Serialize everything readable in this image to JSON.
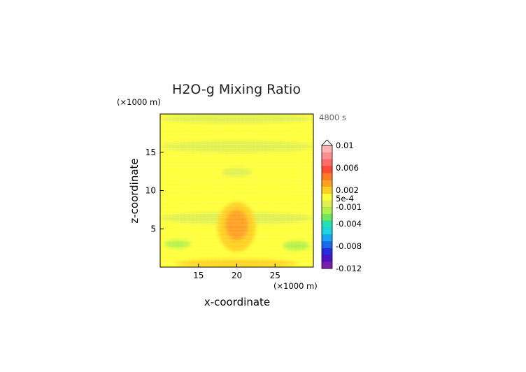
{
  "chart_data": {
    "type": "heatmap",
    "title": "H2O-g Mixing Ratio",
    "time_label": "4800 s",
    "xlabel": "x-coordinate",
    "ylabel": "z-coordinate",
    "x_unit": "(×1000 m)",
    "y_unit": "(×1000 m)",
    "xlim": [
      10,
      30
    ],
    "ylim": [
      0,
      20
    ],
    "x_ticks": [
      "15",
      "20",
      "25"
    ],
    "x_tick_values": [
      15,
      20,
      25
    ],
    "y_ticks": [
      "5",
      "10",
      "15"
    ],
    "y_tick_values": [
      5,
      10,
      15
    ],
    "colorbar": {
      "labels": [
        "0.01",
        "0.006",
        "0.002",
        "5e-4",
        "-0.001",
        "-0.004",
        "-0.008",
        "-0.012"
      ],
      "label_values": [
        0.01,
        0.006,
        0.002,
        0.0005,
        -0.001,
        -0.004,
        -0.008,
        -0.012
      ],
      "min": -0.012,
      "max": 0.01,
      "extend": "max"
    },
    "background_value": 0.0009,
    "features": [
      {
        "name": "upper-green-band",
        "value": -0.0002,
        "x": [
          10,
          30
        ],
        "y": [
          18.8,
          20
        ]
      },
      {
        "name": "upper-yellow-lens",
        "value": 0.0009,
        "x": [
          13,
          27
        ],
        "y": [
          17.4,
          18.6
        ]
      },
      {
        "name": "green-band-16km",
        "value": -0.0002,
        "x": [
          10,
          30
        ],
        "y": [
          15,
          16.5
        ]
      },
      {
        "name": "green-blob-13km",
        "value": -0.0002,
        "x": [
          18,
          22
        ],
        "y": [
          11.8,
          13
        ]
      },
      {
        "name": "green-band-7km",
        "value": -0.0002,
        "x": [
          10,
          30
        ],
        "y": [
          5.6,
          7.2
        ]
      },
      {
        "name": "orange-plume",
        "value": 0.002,
        "x": [
          17.5,
          22.5
        ],
        "y": [
          2,
          8.5
        ]
      },
      {
        "name": "red-core",
        "value": 0.003,
        "x": [
          18.5,
          21.5
        ],
        "y": [
          3.5,
          7.5
        ]
      },
      {
        "name": "cyan-left-low",
        "value": -0.002,
        "x": [
          10.5,
          14
        ],
        "y": [
          2.5,
          3.5
        ]
      },
      {
        "name": "cyan-right-low",
        "value": -0.002,
        "x": [
          26,
          29.5
        ],
        "y": [
          2.2,
          3.4
        ]
      },
      {
        "name": "surface-orange-spots",
        "value": 0.002,
        "x": [
          12,
          28
        ],
        "y": [
          0,
          1
        ]
      }
    ]
  },
  "colors": {
    "frame": "#000000",
    "scale": [
      "#7a1fa8",
      "#4b16c0",
      "#2a2ae0",
      "#1a6ae8",
      "#1aa3f0",
      "#1fd3e0",
      "#22e0b0",
      "#6ee860",
      "#b2f04a",
      "#e0f050",
      "#ffff3a",
      "#ffd020",
      "#ffa020",
      "#ff7a28",
      "#ff4a35",
      "#ff6a6a",
      "#ff9090",
      "#ffb4b4"
    ]
  }
}
